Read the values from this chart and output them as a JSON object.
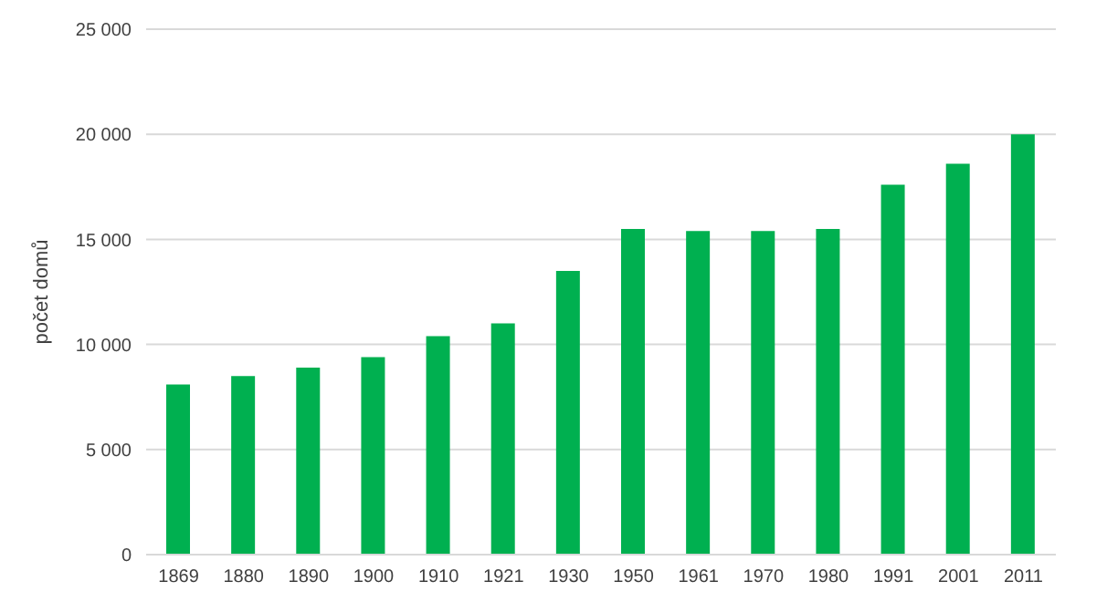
{
  "chart_data": {
    "type": "bar",
    "ylabel": "počet domů",
    "categories": [
      "1869",
      "1880",
      "1890",
      "1900",
      "1910",
      "1921",
      "1930",
      "1950",
      "1961",
      "1970",
      "1980",
      "1991",
      "2001",
      "2011"
    ],
    "values": [
      8100,
      8500,
      8900,
      9400,
      10400,
      11000,
      13500,
      15500,
      15400,
      15400,
      15500,
      17600,
      18600,
      20000
    ],
    "color": "#00b050",
    "ylim": [
      0,
      25000
    ],
    "yticks": [
      0,
      {
        "value": 5000,
        "label": "5 000"
      },
      {
        "value": 10000,
        "label": "10 000"
      },
      {
        "value": 15000,
        "label": "15 000"
      },
      {
        "value": 20000,
        "label": "20 000"
      },
      {
        "value": 25000,
        "label": "25 000"
      }
    ],
    "grid": "y"
  }
}
